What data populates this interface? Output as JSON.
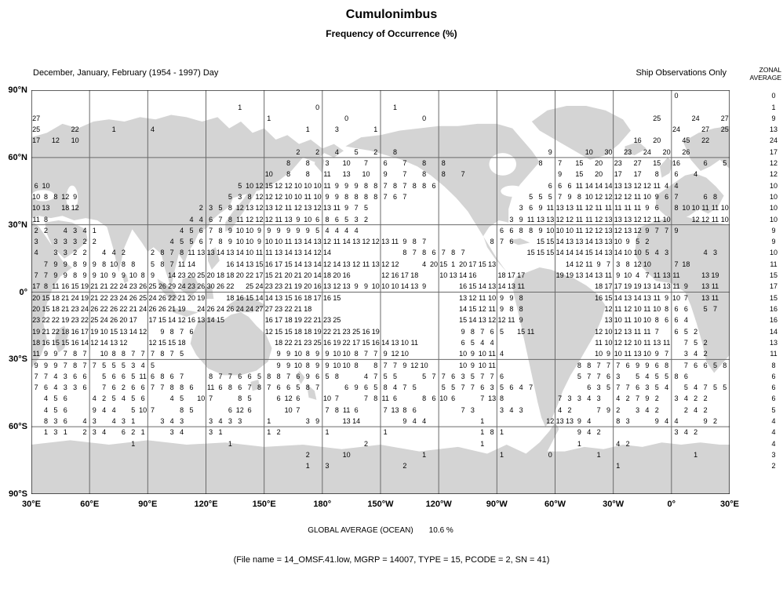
{
  "header": {
    "title": "Cumulonimbus",
    "subtitle": "Frequency of Occurrence (%)",
    "period": "December, January, February (1954 - 1997) Day",
    "source": "Ship Observations Only",
    "zonal": [
      "ZONAL",
      "AVERAGE"
    ]
  },
  "footer": {
    "global_label": "GLOBAL AVERAGE (OCEAN)",
    "global_value": "10.6 %",
    "file_info": "(File name = 14_OMSF.41.low, MGRP = 14007, TYPE = 15, PCODE = 2, SN = 41)"
  },
  "axes": {
    "lat_labels": [
      "90°N",
      "60°N",
      "30°N",
      "0°",
      "30°S",
      "60°S",
      "90°S"
    ],
    "lon_labels": [
      "30°E",
      "60°E",
      "90°E",
      "120°E",
      "150°E",
      "180°",
      "150°W",
      "120°W",
      "90°W",
      "60°W",
      "30°W",
      "0°",
      "30°E"
    ]
  },
  "colors": {
    "land": "#d4d4d4",
    "grid_line": "#6a6a6a",
    "frame": "#000000",
    "text": "#000000"
  },
  "chart_data": {
    "type": "heatmap",
    "title": "Cumulonimbus Frequency of Occurrence (%)",
    "subtitle": "December, January, February (1954 - 1997) Day, Ship Observations Only",
    "units": "%",
    "grid": {
      "lon_origin_deg_east": 30,
      "lon_step_deg": 5,
      "lon_cols": 72,
      "lat_origin_deg_north": 90,
      "lat_step_deg": -5,
      "lat_rows": 36,
      "note": "rows[] is indexed by 5-deg latitude band from 87.5N southward; each run is [startCol, space-separated percent values]; blank cells are land/no data"
    },
    "rows": [
      [
        [
          66,
          "0"
        ]
      ],
      [
        [
          21,
          "1"
        ],
        [
          29,
          "0"
        ],
        [
          37,
          "1"
        ]
      ],
      [
        [
          0,
          "27"
        ],
        [
          24,
          "1"
        ],
        [
          32,
          "0"
        ],
        [
          40,
          "0"
        ],
        [
          64,
          "25"
        ],
        [
          68,
          "24"
        ],
        [
          71,
          "27"
        ]
      ],
      [
        [
          0,
          "25"
        ],
        [
          4,
          "22"
        ],
        [
          8,
          "1"
        ],
        [
          12,
          "4"
        ],
        [
          28,
          "1"
        ],
        [
          31,
          "3"
        ],
        [
          35,
          "1"
        ],
        [
          66,
          "24"
        ],
        [
          69,
          "27"
        ],
        [
          71,
          "25"
        ]
      ],
      [
        [
          0,
          "17"
        ],
        [
          2,
          "12"
        ],
        [
          4,
          "10"
        ],
        [
          62,
          "16"
        ],
        [
          64,
          "20"
        ],
        [
          67,
          "45"
        ],
        [
          69,
          "22"
        ]
      ],
      [
        [
          27,
          "2"
        ],
        [
          29,
          "2"
        ],
        [
          31,
          "4"
        ],
        [
          33,
          "5"
        ],
        [
          35,
          "2"
        ],
        [
          37,
          "8"
        ],
        [
          53,
          "9"
        ],
        [
          57,
          "10"
        ],
        [
          59,
          "30"
        ],
        [
          61,
          "23"
        ],
        [
          63,
          "24"
        ],
        [
          65,
          "20"
        ],
        [
          67,
          "26"
        ]
      ],
      [
        [
          26,
          "8"
        ],
        [
          28,
          "8"
        ],
        [
          30,
          "3"
        ],
        [
          32,
          "10"
        ],
        [
          34,
          "7"
        ],
        [
          36,
          "6"
        ],
        [
          38,
          "7"
        ],
        [
          40,
          "8"
        ],
        [
          42,
          "8"
        ],
        [
          52,
          "8"
        ],
        [
          54,
          "7"
        ],
        [
          56,
          "15"
        ],
        [
          58,
          "20"
        ],
        [
          60,
          "23"
        ],
        [
          62,
          "27"
        ],
        [
          64,
          "15"
        ],
        [
          66,
          "16"
        ],
        [
          69,
          "6"
        ],
        [
          71,
          "5"
        ]
      ],
      [
        [
          24,
          "10"
        ],
        [
          26,
          "8"
        ],
        [
          28,
          "8"
        ],
        [
          30,
          "11"
        ],
        [
          32,
          "13"
        ],
        [
          34,
          "10"
        ],
        [
          36,
          "9"
        ],
        [
          38,
          "7"
        ],
        [
          40,
          "8"
        ],
        [
          42,
          "8"
        ],
        [
          44,
          "7"
        ],
        [
          54,
          "9"
        ],
        [
          56,
          "15"
        ],
        [
          58,
          "20"
        ],
        [
          60,
          "17"
        ],
        [
          62,
          "17"
        ],
        [
          64,
          "8"
        ],
        [
          66,
          "6"
        ],
        [
          68,
          "4"
        ]
      ],
      [
        [
          0,
          "6 10"
        ],
        [
          21,
          "5 10 12 15 12 12 10 10 10 11 9 9 9 8 8 7 8 7 8 8 6"
        ],
        [
          53,
          "6 6 6 11 14 14 14 13 13 12 12 11"
        ],
        [
          65,
          "4 4"
        ]
      ],
      [
        [
          0,
          "10 8 8 12 9"
        ],
        [
          20,
          "5 3 8 12 12 12 10 10 11 10 9 9 8 8 8 8 7 6 7"
        ],
        [
          51,
          "5 5 5 7 9 8 10 12 12 12 12 11 10 9 6 7"
        ],
        [
          69,
          "6 8"
        ]
      ],
      [
        [
          0,
          "10 13"
        ],
        [
          3,
          "18 12"
        ],
        [
          17,
          "2 3 5 8 12 13 12 13 12 11 12 13 12 13 11 9 7 5"
        ],
        [
          50,
          "3 6 9 11 13 13 11 12 11 11 11 11 11 9 6"
        ],
        [
          66,
          "8 10 10 11 11 10"
        ]
      ],
      [
        [
          0,
          "11 8"
        ],
        [
          16,
          "4 4 6 7 8 11 12 12 12 11 13 9 10 6 8 6 5 3 2"
        ],
        [
          49,
          "3 9 11 13 13 12 12 11 11 12 13 13 13 12 12 11 10"
        ],
        [
          68,
          "12 12 11 10"
        ]
      ],
      [
        [
          0,
          "2 2"
        ],
        [
          3,
          "4 3 4 1"
        ],
        [
          15,
          "4 5 6 7 8 9 10 10 9 9 9 9 9 9 5 4 4 4 4"
        ],
        [
          48,
          "6 6 8 8 9 10 10 10 11 12 12 13 12 13 12 9 7 7 9"
        ]
      ],
      [
        [
          0,
          "3"
        ],
        [
          2,
          "3 3 3 2 2"
        ],
        [
          14,
          "4 5 5 6 7 8 9 10 10 9 10 10 11 13 14 13 12 11 14 13 12 12 13 11 9 8 7"
        ],
        [
          47,
          "8 7 6"
        ],
        [
          52,
          "15 15 14 13 13 14 13 13 10 9 5 2"
        ]
      ],
      [
        [
          0,
          "4"
        ],
        [
          2,
          "3 3 2 2"
        ],
        [
          7,
          "4 4 2"
        ],
        [
          12,
          "2 8 7 8 11 13 13 14 13 14 10 11 11 13 14 13 14 12 14"
        ],
        [
          38,
          "8 7 8 6 7 8 7"
        ],
        [
          51,
          "15 15 15 14 14 14 15 14 13 14 10 10 5 4 3"
        ],
        [
          69,
          "4 3"
        ]
      ],
      [
        [
          1,
          "7 9 9 8 9 9 8 10 8 8"
        ],
        [
          12,
          "5 8 7 11 14"
        ],
        [
          20,
          "16 14 13 15 16 17 15 14 13 14 12 14 13 12 11 13 12 12"
        ],
        [
          40,
          "4 20 15 1"
        ],
        [
          44,
          "20 17 15 13"
        ],
        [
          55,
          "14 12 11 9 7 3 8 12 10"
        ],
        [
          66,
          "7 18"
        ]
      ],
      [
        [
          0,
          "7 7 9 9 8 9 9 10 9 9 10 8 9"
        ],
        [
          14,
          "14 23 20 25 20 18 18 20 22 17 15 21 20 21 20 14 18 20 16"
        ],
        [
          36,
          "12 16 17 18"
        ],
        [
          42,
          "10 13 14 16"
        ],
        [
          48,
          "18 17 17"
        ],
        [
          54,
          "19 19 13 14 13 11 9 10 4 7 11 13 11"
        ],
        [
          69,
          "13 19"
        ]
      ],
      [
        [
          0,
          "17 8 11 16 15"
        ],
        [
          5,
          "19 21 21 22 24 23 26 25 26 29 24 23 26 30 26 22"
        ],
        [
          22,
          "25 24 23 23 21 19 20 16 13 12 13 9 9 10 10 10 14 13 9"
        ],
        [
          44,
          "16 15 14 13 14 13 11"
        ],
        [
          58,
          "18 17 17 19 19 13 14 13 11 9"
        ],
        [
          69,
          "13 11"
        ]
      ],
      [
        [
          0,
          "20 15 18 21 24 19 21 22 23 24 26 25 24 26 22 21 20 19"
        ],
        [
          20,
          "18 16 15 14 14 13 15 16 18 17 16 15"
        ],
        [
          44,
          "13 12 11 10 9 9 8"
        ],
        [
          58,
          "16 15 14 13 14 13 11 9 10 7"
        ],
        [
          69,
          "13 11"
        ]
      ],
      [
        [
          0,
          "20 15 18 21 23 24 26 22 26 22 21 24 26 26 21 19"
        ],
        [
          17,
          "24 26 24 26 24 24 27 27 23 22 21 18"
        ],
        [
          44,
          "14 15 12 11 9 8 8"
        ],
        [
          59,
          "12 11 12 10 11 10 8 6 6"
        ],
        [
          69,
          "5 7"
        ]
      ],
      [
        [
          0,
          "23 22 22 19 23 22 25 24 26 20 17"
        ],
        [
          12,
          "17 15 14 12 16 13 14 15"
        ],
        [
          24,
          "16 17 18 19 22 21 23 25"
        ],
        [
          44,
          "15 14 13 12 12 11 9"
        ],
        [
          59,
          "13 10 11 10 10 8 6 6 4"
        ]
      ],
      [
        [
          0,
          "19 21 22 18 16 17 19 10 15 13 14 12"
        ],
        [
          13,
          "9 8 7 6"
        ],
        [
          24,
          "12 15 15 18 18 19 22 21 23 25 16 19"
        ],
        [
          44,
          "9 8 7 6 5"
        ],
        [
          50,
          "15 11"
        ],
        [
          58,
          "12 10 12 13 11 11 7"
        ],
        [
          66,
          "6 5 2"
        ]
      ],
      [
        [
          0,
          "18 16 15 15 16 14 12 14 13 12"
        ],
        [
          12,
          "12 15 15 18"
        ],
        [
          25,
          "18 22 21 23 25 16 19 22 17 15 16 14 13 10 11"
        ],
        [
          44,
          "6 5 4 4"
        ],
        [
          58,
          "11 10 12 12 10 11 13 11"
        ],
        [
          67,
          "7 5 2"
        ]
      ],
      [
        [
          0,
          "11 9 9 7 8 7"
        ],
        [
          7,
          "10 8 8 7 7 7 8 7 5"
        ],
        [
          25,
          "9 9 10 8 9 9 10 10 8 7 7 9 12 10"
        ],
        [
          44,
          "10 9 10 11 4"
        ],
        [
          58,
          "10 9 10 11 13 10 9 7"
        ],
        [
          67,
          "3 4 2"
        ]
      ],
      [
        [
          0,
          "9 9 9 7 8 7 7 5 5 5 3 4 5"
        ],
        [
          25,
          "9 9 10 8 9 9 10 10 8"
        ],
        [
          35,
          "8 7 7 9 12 10"
        ],
        [
          44,
          "10 9 10 11"
        ],
        [
          56,
          "8 8 7 7 7 6 9 9 6 8"
        ],
        [
          67,
          "7 6 6 5 8"
        ]
      ],
      [
        [
          0,
          "7 7 4 3 6 6"
        ],
        [
          7,
          "5 6 6 5 11 6 8 6 7"
        ],
        [
          18,
          "8 7 7 6 6 5 8 8 7 6 9 6 5 8"
        ],
        [
          34,
          "4 7 5 5"
        ],
        [
          40,
          "5 7 7 6 3 5 7 7 6"
        ],
        [
          56,
          "5 7 7 6 3"
        ],
        [
          62,
          "5 4 5 5 8 6"
        ]
      ],
      [
        [
          0,
          "7 6 4 3 3 6"
        ],
        [
          7,
          "7 6 2 6 6 7 7 8 8 6"
        ],
        [
          18,
          "11 6 8 6 7 8 7 6 6 5 8 7"
        ],
        [
          32,
          "6 9 6 5 8 4 7 5"
        ],
        [
          42,
          "5 5 7 7 6 3 5 6 4 7"
        ],
        [
          57,
          "6 3 5 7 7 6 3 5 4"
        ],
        [
          67,
          "5 4 7 5 5"
        ]
      ],
      [
        [
          1,
          "4 5 6"
        ],
        [
          6,
          "4 2 5 4 5 6"
        ],
        [
          14,
          "4 5"
        ],
        [
          17,
          "10 7"
        ],
        [
          21,
          "8 5"
        ],
        [
          25,
          "6 12 6"
        ],
        [
          30,
          "10 7"
        ],
        [
          34,
          "7 8 11 6"
        ],
        [
          40,
          "8 6 10 6"
        ],
        [
          46,
          "7 13 8"
        ],
        [
          54,
          "7 3 3 4 3"
        ],
        [
          60,
          "4 2 7 9 2"
        ],
        [
          66,
          "3 4 2 2"
        ]
      ],
      [
        [
          1,
          "4 5 6"
        ],
        [
          6,
          "9 4 4"
        ],
        [
          10,
          "5 10 7"
        ],
        [
          15,
          "8 5"
        ],
        [
          20,
          "6 12 6"
        ],
        [
          26,
          "10 7"
        ],
        [
          30,
          "7 8 11 6"
        ],
        [
          36,
          "7 13 8 6"
        ],
        [
          44,
          "7 3"
        ],
        [
          48,
          "3 4 3"
        ],
        [
          54,
          "4 2"
        ],
        [
          58,
          "7 9 2"
        ],
        [
          62,
          "3 4 2"
        ],
        [
          67,
          "2 4 2"
        ]
      ],
      [
        [
          1,
          "8 3 6"
        ],
        [
          5,
          "4 3"
        ],
        [
          8,
          "4 3 1"
        ],
        [
          13,
          "3 4 3"
        ],
        [
          18,
          "3 4 3 3"
        ],
        [
          24,
          "1"
        ],
        [
          28,
          "3 9"
        ],
        [
          32,
          "13 14"
        ],
        [
          38,
          "9 4 4"
        ],
        [
          46,
          "1"
        ],
        [
          53,
          "12 13 13 9 4"
        ],
        [
          60,
          "8 3"
        ],
        [
          64,
          "9 4 4"
        ],
        [
          69,
          "9 2"
        ]
      ],
      [
        [
          1,
          "1 3 1"
        ],
        [
          5,
          "2 3 4"
        ],
        [
          9,
          "6 2 1"
        ],
        [
          14,
          "3 4"
        ],
        [
          18,
          "3 1"
        ],
        [
          24,
          "1 2"
        ],
        [
          30,
          "1"
        ],
        [
          36,
          "1"
        ],
        [
          46,
          "1 8 1"
        ],
        [
          56,
          "9 4 2"
        ],
        [
          66,
          "3 4 2"
        ]
      ],
      [
        [
          10,
          "1"
        ],
        [
          20,
          "1"
        ],
        [
          34,
          "2"
        ],
        [
          46,
          "1"
        ],
        [
          56,
          "1"
        ],
        [
          60,
          "4 2"
        ]
      ],
      [
        [
          28,
          "2"
        ],
        [
          32,
          "10"
        ],
        [
          40,
          "1"
        ],
        [
          48,
          "1"
        ],
        [
          53,
          "0"
        ],
        [
          58,
          "1"
        ],
        [
          68,
          "1"
        ]
      ],
      [
        [
          28,
          "1"
        ],
        [
          30,
          "3"
        ],
        [
          38,
          "2"
        ],
        [
          60,
          "1"
        ]
      ]
    ],
    "zonal_averages": [
      "0",
      "1",
      "9",
      "13",
      "24",
      "17",
      "12",
      "12",
      "10",
      "10",
      "10",
      "10",
      "9",
      "9",
      "10",
      "11",
      "15",
      "17",
      "15",
      "16",
      "16",
      "14",
      "13",
      "11",
      "8",
      "6",
      "6",
      "6",
      "5",
      "4",
      "4",
      "4",
      "3",
      "2"
    ],
    "global_average_ocean_percent": 10.6,
    "legend_position": "right",
    "grid_lines": "30-degree graticule on"
  }
}
